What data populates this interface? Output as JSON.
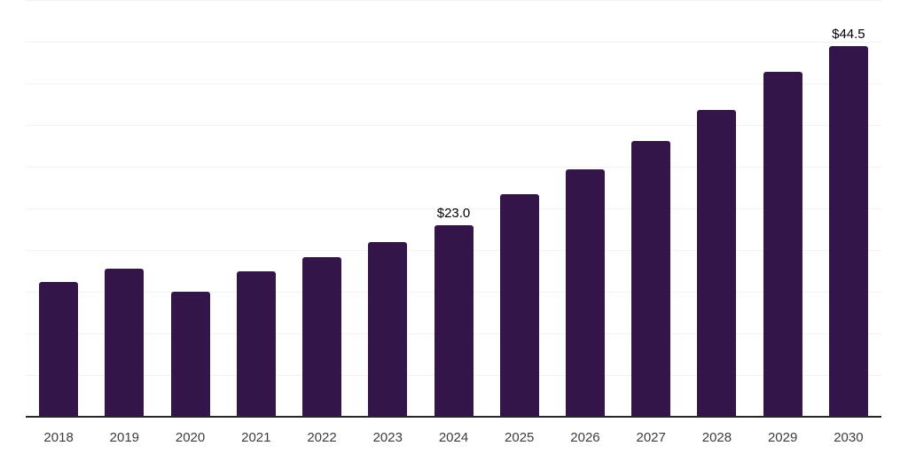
{
  "chart_data": {
    "type": "bar",
    "title": "",
    "xlabel": "",
    "ylabel": "",
    "categories": [
      "2018",
      "2019",
      "2020",
      "2021",
      "2022",
      "2023",
      "2024",
      "2025",
      "2026",
      "2027",
      "2028",
      "2029",
      "2030"
    ],
    "values": [
      16.2,
      17.8,
      15.0,
      17.5,
      19.2,
      21.0,
      23.0,
      26.7,
      29.7,
      33.1,
      36.8,
      41.4,
      44.5
    ],
    "data_labels": [
      null,
      null,
      null,
      null,
      null,
      null,
      "$23.0",
      null,
      null,
      null,
      null,
      null,
      "$44.5"
    ],
    "ylim": [
      0,
      50
    ],
    "grid_step": 5,
    "grid": "horizontal",
    "legend": "none",
    "colors": {
      "bar": "#33154A",
      "gridline": "#F2F2F2",
      "axis_line": "#262626",
      "tick_label": "#3C3C3C",
      "data_label": "#000000",
      "background": "#FFFFFF"
    }
  }
}
